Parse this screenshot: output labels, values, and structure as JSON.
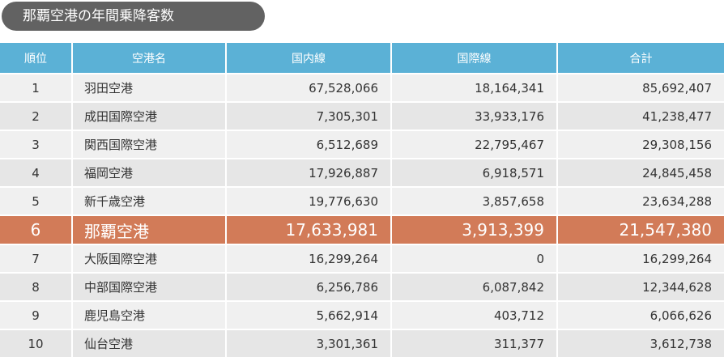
{
  "title": "那覇空港の年間乗降客数",
  "columns": [
    "順位",
    "空港名",
    "国内線",
    "国際線",
    "合計"
  ],
  "rows": [
    {
      "rank": "1",
      "name": "羽田空港",
      "domestic": "67,528,066",
      "international": "18,164,341",
      "total": "85,692,407"
    },
    {
      "rank": "2",
      "name": "成田国際空港",
      "domestic": "7,305,301",
      "international": "33,933,176",
      "total": "41,238,477"
    },
    {
      "rank": "3",
      "name": "関西国際空港",
      "domestic": "6,512,689",
      "international": "22,795,467",
      "total": "29,308,156"
    },
    {
      "rank": "4",
      "name": "福岡空港",
      "domestic": "17,926,887",
      "international": "6,918,571",
      "total": "24,845,458"
    },
    {
      "rank": "5",
      "name": "新千歳空港",
      "domestic": "19,776,630",
      "international": "3,857,658",
      "total": "23,634,288"
    },
    {
      "rank": "6",
      "name": "那覇空港",
      "domestic": "17,633,981",
      "international": "3,913,399",
      "total": "21,547,380"
    },
    {
      "rank": "7",
      "name": "大阪国際空港",
      "domestic": "16,299,264",
      "international": "0",
      "total": "16,299,264"
    },
    {
      "rank": "8",
      "name": "中部国際空港",
      "domestic": "6,256,786",
      "international": "6,087,842",
      "total": "12,344,628"
    },
    {
      "rank": "9",
      "name": "鹿児島空港",
      "domestic": "5,662,914",
      "international": "403,712",
      "total": "6,066,626"
    },
    {
      "rank": "10",
      "name": "仙台空港",
      "domestic": "3,301,361",
      "international": "311,377",
      "total": "3,612,738"
    }
  ],
  "highlight_color": "#d27b58",
  "header_color": "#5bb1d6"
}
